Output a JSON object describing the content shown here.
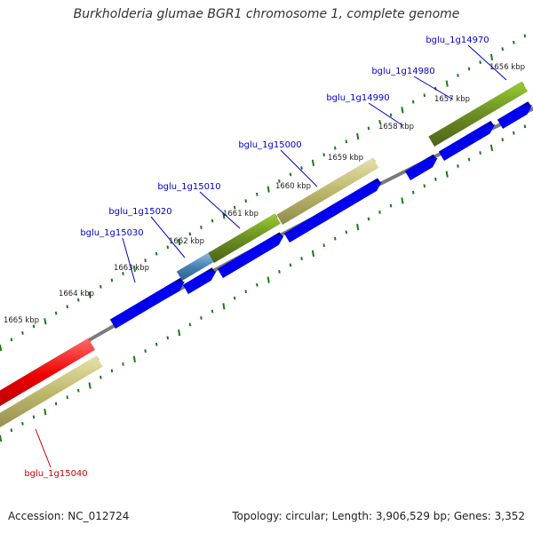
{
  "title": "Burkholderia glumae BGR1 chromosome 1, complete genome",
  "footer": {
    "accession": "Accession: NC_012724",
    "summary": "Topology: circular; Length: 3,906,529 bp; Genes: 3,352"
  },
  "colors": {
    "backbone": "#808080",
    "tick": "#1a7a1a",
    "cds_forward": "#0000ee",
    "gene_olive": "#6b8e23",
    "gene_khaki": "#bdb76b",
    "gene_steel": "#4682b4",
    "gene_red": "#ee0000",
    "label_blue": "#0000cc",
    "label_red": "#cc0000"
  },
  "ticks": [
    {
      "label": "1656 kbp"
    },
    {
      "label": "1657 kbp"
    },
    {
      "label": "1658 kbp"
    },
    {
      "label": "1659 kbp"
    },
    {
      "label": "1660 kbp"
    },
    {
      "label": "1661 kbp"
    },
    {
      "label": "1662 kbp"
    },
    {
      "label": "1663 kbp"
    },
    {
      "label": "1664 kbp"
    },
    {
      "label": "1665 kbp"
    }
  ],
  "genes": [
    {
      "name": "bglu_1g14970",
      "color": "label_blue"
    },
    {
      "name": "bglu_1g14980",
      "color": "label_blue"
    },
    {
      "name": "bglu_1g14990",
      "color": "label_blue"
    },
    {
      "name": "bglu_1g15000",
      "color": "label_blue"
    },
    {
      "name": "bglu_1g15010",
      "color": "label_blue"
    },
    {
      "name": "bglu_1g15020",
      "color": "label_blue"
    },
    {
      "name": "bglu_1g15030",
      "color": "label_blue"
    },
    {
      "name": "bglu_1g15040",
      "color": "label_red"
    }
  ]
}
